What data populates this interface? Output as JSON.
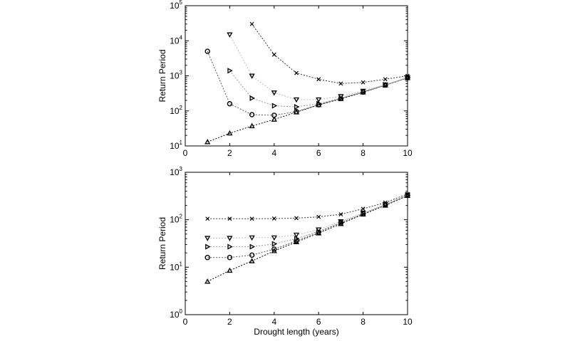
{
  "chart_data": [
    {
      "type": "line",
      "panel": "top",
      "title": "",
      "xlabel": "",
      "ylabel": "Return Period",
      "xlim": [
        0,
        10
      ],
      "ylim": [
        10,
        100000
      ],
      "yscale": "log",
      "x_ticks": [
        0,
        2,
        4,
        6,
        8,
        10
      ],
      "y_tick_exponents": [
        1,
        2,
        3,
        4,
        5
      ],
      "y_tick_base": "10",
      "grid": false,
      "series": [
        {
          "name": "triangle",
          "marker": "triangle-up",
          "x": [
            1,
            2,
            3,
            4,
            5,
            6,
            7,
            8,
            9,
            10
          ],
          "values": [
            13,
            23,
            37,
            57,
            92,
            148,
            220,
            340,
            540,
            870
          ]
        },
        {
          "name": "circle",
          "marker": "circle",
          "x": [
            1,
            2,
            3,
            4,
            5,
            6,
            7,
            8,
            9,
            10
          ],
          "values": [
            5000,
            160,
            78,
            75,
            95,
            150,
            225,
            345,
            545,
            880
          ]
        },
        {
          "name": "triangle-right",
          "marker": "triangle-right",
          "x": [
            2,
            3,
            4,
            5,
            6,
            7,
            8,
            9,
            10
          ],
          "values": [
            1400,
            230,
            140,
            130,
            160,
            230,
            350,
            550,
            890
          ]
        },
        {
          "name": "triangle-down",
          "marker": "triangle-down",
          "x": [
            2,
            3,
            4,
            5,
            6,
            7,
            8,
            9,
            10
          ],
          "values": [
            15000,
            1000,
            330,
            210,
            210,
            260,
            370,
            560,
            900
          ]
        },
        {
          "name": "x-cross",
          "marker": "x",
          "x": [
            3,
            4,
            5,
            6,
            7,
            8,
            9,
            10
          ],
          "values": [
            30000,
            4000,
            1200,
            800,
            600,
            650,
            800,
            1000
          ]
        }
      ]
    },
    {
      "type": "line",
      "panel": "bottom",
      "title": "",
      "xlabel": "Drought length (years)",
      "ylabel": "Return Period",
      "xlim": [
        0,
        10
      ],
      "ylim": [
        1,
        1000
      ],
      "yscale": "log",
      "x_ticks": [
        0,
        2,
        4,
        6,
        8,
        10
      ],
      "y_tick_exponents": [
        0,
        1,
        2,
        3
      ],
      "y_tick_base": "10",
      "grid": false,
      "series": [
        {
          "name": "triangle",
          "marker": "triangle-up",
          "x": [
            1,
            2,
            3,
            4,
            5,
            6,
            7,
            8,
            9,
            10
          ],
          "values": [
            5,
            8.5,
            13.5,
            22,
            34,
            52,
            82,
            130,
            200,
            320
          ]
        },
        {
          "name": "circle",
          "marker": "circle",
          "x": [
            1,
            2,
            3,
            4,
            5,
            6,
            7,
            8,
            9,
            10
          ],
          "values": [
            16,
            16,
            18,
            24,
            36,
            55,
            86,
            133,
            205,
            325
          ]
        },
        {
          "name": "triangle-right",
          "marker": "triangle-right",
          "x": [
            1,
            2,
            3,
            4,
            5,
            6,
            7,
            8,
            9,
            10
          ],
          "values": [
            27,
            27,
            27,
            31,
            40,
            57,
            88,
            135,
            208,
            330
          ]
        },
        {
          "name": "triangle-down",
          "marker": "triangle-down",
          "x": [
            1,
            2,
            3,
            4,
            5,
            6,
            7,
            8,
            9,
            10
          ],
          "values": [
            41,
            41,
            42,
            42,
            48,
            62,
            92,
            140,
            212,
            335
          ]
        },
        {
          "name": "x-cross",
          "marker": "x",
          "x": [
            1,
            2,
            3,
            4,
            5,
            6,
            7,
            8,
            9,
            10
          ],
          "values": [
            105,
            105,
            105,
            106,
            108,
            115,
            130,
            170,
            230,
            350
          ]
        }
      ]
    }
  ]
}
